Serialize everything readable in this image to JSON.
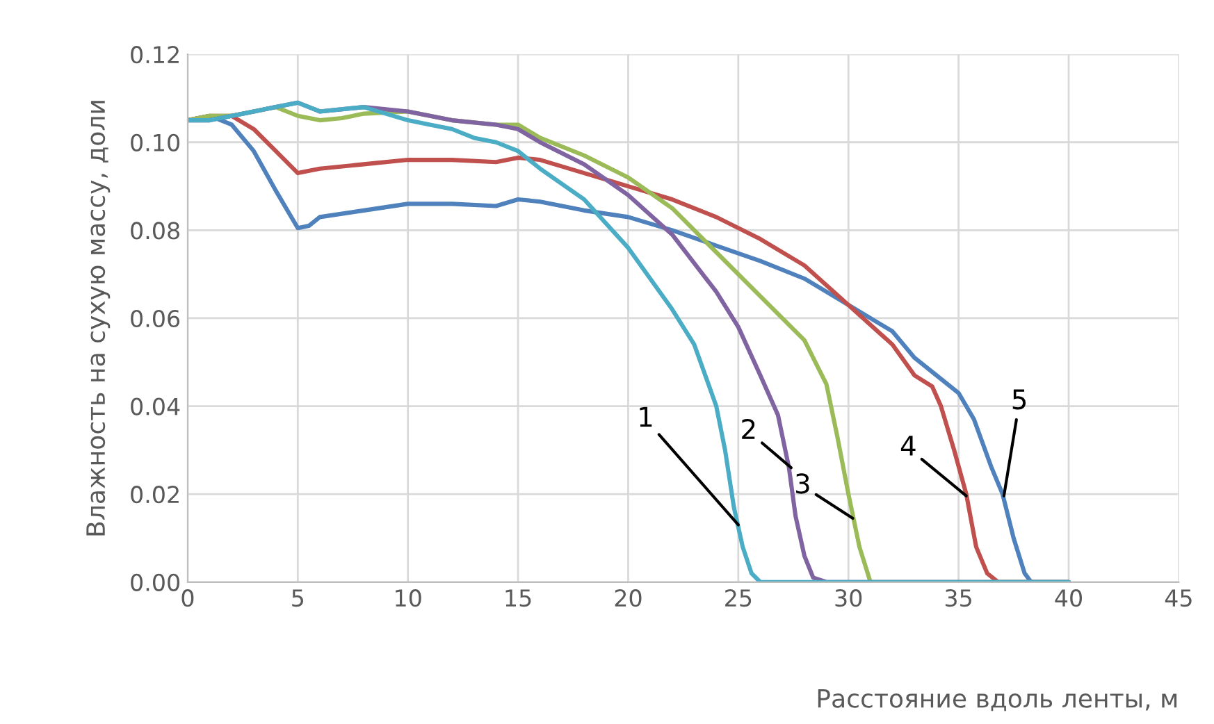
{
  "chart_data": {
    "type": "line",
    "xlabel": "Расстояние вдоль ленты, м",
    "ylabel": "Влажность на сухую массу, доли",
    "xlim": [
      0,
      45
    ],
    "xticks": [
      0,
      5,
      10,
      15,
      20,
      25,
      30,
      35,
      40,
      45
    ],
    "ylim": [
      0,
      0.12
    ],
    "yticks": [
      {
        "value": 0,
        "label": "0.00"
      },
      {
        "value": 0.02,
        "label": "0.02"
      },
      {
        "value": 0.04,
        "label": "0.04"
      },
      {
        "value": 0.06,
        "label": "0.06"
      },
      {
        "value": 0.08,
        "label": "0.08"
      },
      {
        "value": 0.1,
        "label": "0.10"
      },
      {
        "value": 0.12,
        "label": "0.12"
      }
    ],
    "grid": true,
    "marker": "none",
    "line_style": "solid",
    "series": [
      {
        "color": "#4f81bd",
        "x": [
          0,
          1,
          2,
          3,
          4,
          5,
          5.5,
          6,
          8,
          10,
          12,
          14,
          15,
          16,
          18,
          20,
          22,
          24,
          26,
          28,
          30,
          32,
          33,
          34,
          35,
          35.7,
          36.5,
          37,
          37.5,
          38,
          38.3,
          40
        ],
        "values": [
          0.105,
          0.106,
          0.104,
          0.098,
          0.089,
          0.0805,
          0.081,
          0.083,
          0.0845,
          0.086,
          0.086,
          0.0855,
          0.087,
          0.0865,
          0.0845,
          0.083,
          0.08,
          0.0765,
          0.073,
          0.069,
          0.063,
          0.057,
          0.051,
          0.047,
          0.043,
          0.037,
          0.026,
          0.02,
          0.01,
          0.002,
          0,
          0
        ]
      },
      {
        "color": "#c0504d",
        "x": [
          0,
          1,
          2,
          3,
          4,
          5,
          6,
          8,
          10,
          12,
          14,
          15,
          16,
          18,
          20,
          22,
          24,
          26,
          28,
          30,
          32,
          33,
          33.8,
          34.2,
          34.8,
          35.35,
          35.8,
          36.3,
          36.8,
          40
        ],
        "values": [
          0.105,
          0.106,
          0.106,
          0.103,
          0.098,
          0.093,
          0.094,
          0.095,
          0.096,
          0.096,
          0.0955,
          0.0965,
          0.096,
          0.093,
          0.09,
          0.087,
          0.083,
          0.078,
          0.072,
          0.063,
          0.054,
          0.047,
          0.0445,
          0.04,
          0.03,
          0.02,
          0.008,
          0.002,
          0,
          0
        ]
      },
      {
        "color": "#9bbb59",
        "x": [
          0,
          1,
          2,
          3,
          4,
          5,
          6,
          7,
          8,
          10,
          12,
          14,
          15,
          16,
          18,
          20,
          22,
          24,
          26,
          28,
          28.5,
          29,
          29.5,
          30,
          30.5,
          31,
          40
        ],
        "values": [
          0.105,
          0.106,
          0.106,
          0.107,
          0.108,
          0.106,
          0.105,
          0.1055,
          0.1065,
          0.107,
          0.105,
          0.104,
          0.104,
          0.101,
          0.097,
          0.092,
          0.085,
          0.075,
          0.065,
          0.055,
          0.05,
          0.045,
          0.033,
          0.02,
          0.008,
          0,
          0
        ]
      },
      {
        "color": "#8064a2",
        "x": [
          0,
          1,
          2,
          3,
          4,
          5,
          6,
          8,
          10,
          12,
          14,
          15,
          16,
          18,
          20,
          22,
          24,
          25,
          26,
          26.8,
          27.3,
          27.6,
          28,
          28.4,
          29,
          40
        ],
        "values": [
          0.105,
          0.105,
          0.106,
          0.107,
          0.108,
          0.109,
          0.107,
          0.108,
          0.107,
          0.105,
          0.104,
          0.103,
          0.1,
          0.095,
          0.088,
          0.079,
          0.066,
          0.058,
          0.047,
          0.038,
          0.026,
          0.015,
          0.006,
          0.001,
          0,
          0
        ]
      },
      {
        "color": "#4bacc6",
        "x": [
          0,
          1,
          2,
          3,
          4,
          5,
          6,
          8,
          10,
          11,
          12,
          13,
          14,
          15,
          16,
          18,
          20,
          22,
          23,
          24,
          24.4,
          24.8,
          25.2,
          25.6,
          26,
          40
        ],
        "values": [
          0.105,
          0.105,
          0.106,
          0.107,
          0.108,
          0.109,
          0.107,
          0.108,
          0.105,
          0.104,
          0.103,
          0.101,
          0.1,
          0.098,
          0.094,
          0.087,
          0.076,
          0.062,
          0.054,
          0.04,
          0.03,
          0.017,
          0.008,
          0.002,
          0,
          0
        ]
      }
    ],
    "annotations": [
      {
        "text": "1",
        "x": 25.0,
        "y": 0.013
      },
      {
        "text": "2",
        "x": 27.4,
        "y": 0.026
      },
      {
        "text": "3",
        "x": 30.2,
        "y": 0.0145
      },
      {
        "text": "4",
        "x": 35.35,
        "y": 0.0196
      },
      {
        "text": "5",
        "x": 37.06,
        "y": 0.0196
      }
    ]
  }
}
